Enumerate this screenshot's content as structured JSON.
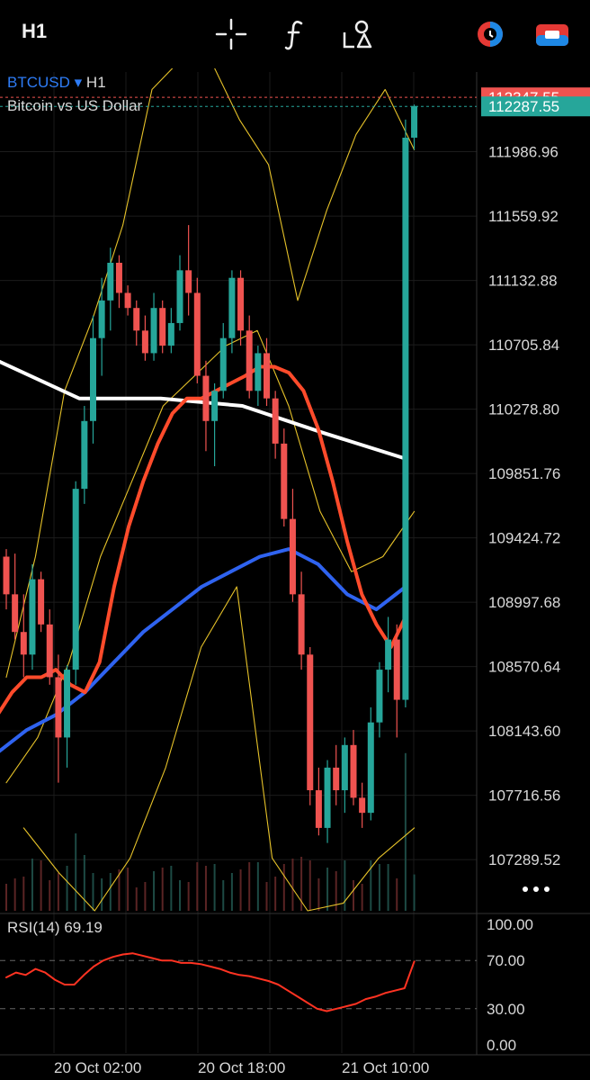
{
  "toolbar": {
    "timeframe": "H1",
    "icons": [
      "crosshair-icon",
      "indicators-icon",
      "drawing-tools-icon",
      "compare-icon",
      "broker-icon"
    ]
  },
  "symbol": {
    "ticker": "BTCUSD",
    "arrow": "▾",
    "timeframe": "H1",
    "description": "Bitcoin vs US Dollar"
  },
  "rsi": {
    "label": "RSI(14)",
    "value": "69.19"
  },
  "colors": {
    "up": "#26a69a",
    "down": "#ef5350",
    "ema_fast": "#ff4b2b",
    "ema_mid": "#2f63f0",
    "ema_slow": "#ffffff",
    "bands": "#e6c229",
    "rsi": "#ff3322"
  },
  "chart_data": [
    {
      "type": "candlestick",
      "price_axis_ticks": [
        "111986.96",
        "111559.92",
        "111132.88",
        "110705.84",
        "110278.80",
        "109851.76",
        "109424.72",
        "108997.68",
        "108570.64",
        "108143.60",
        "107716.56",
        "107289.52"
      ],
      "price_labels": {
        "last_bid": "112347.55",
        "last_price": "112287.55"
      },
      "x_ticks": [
        "20 Oct 02:00",
        "20 Oct 18:00",
        "21 Oct 10:00"
      ],
      "ylim": [
        106950,
        112480
      ],
      "candles": [
        [
          109300,
          109350,
          108950,
          109050
        ],
        [
          109050,
          109320,
          108750,
          108800
        ],
        [
          108800,
          109050,
          108500,
          108650
        ],
        [
          108650,
          109250,
          108550,
          109150
        ],
        [
          109150,
          109200,
          108800,
          108850
        ],
        [
          108850,
          108950,
          108450,
          108500
        ],
        [
          108500,
          108650,
          107800,
          108100
        ],
        [
          108100,
          108580,
          107900,
          108550
        ],
        [
          108550,
          109800,
          108450,
          109750
        ],
        [
          109750,
          110300,
          109650,
          110200
        ],
        [
          110200,
          110900,
          110050,
          110750
        ],
        [
          110750,
          111150,
          110500,
          111000
        ],
        [
          111000,
          111350,
          110800,
          111250
        ],
        [
          111250,
          111300,
          110950,
          111050
        ],
        [
          111050,
          111100,
          110900,
          110950
        ],
        [
          110950,
          111000,
          110700,
          110800
        ],
        [
          110800,
          110900,
          110600,
          110650
        ],
        [
          110650,
          111050,
          110600,
          110950
        ],
        [
          110950,
          111000,
          110650,
          110700
        ],
        [
          110700,
          110950,
          110650,
          110850
        ],
        [
          110850,
          111300,
          110800,
          111200
        ],
        [
          111200,
          111500,
          110900,
          111050
        ],
        [
          111050,
          111150,
          110450,
          110500
        ],
        [
          110500,
          110600,
          110000,
          110200
        ],
        [
          110200,
          110450,
          109900,
          110400
        ],
        [
          110400,
          110850,
          110350,
          110750
        ],
        [
          110750,
          111200,
          110650,
          111150
        ],
        [
          111150,
          111200,
          110700,
          110800
        ],
        [
          110800,
          110900,
          110350,
          110400
        ],
        [
          110400,
          110700,
          110300,
          110650
        ],
        [
          110650,
          110750,
          110300,
          110350
        ],
        [
          110350,
          110400,
          109950,
          110050
        ],
        [
          110050,
          110150,
          109500,
          109550
        ],
        [
          109550,
          109750,
          109000,
          109050
        ],
        [
          109050,
          109200,
          108550,
          108650
        ],
        [
          108650,
          108700,
          107650,
          107750
        ],
        [
          107750,
          107900,
          107450,
          107500
        ],
        [
          107500,
          107950,
          107400,
          107900
        ],
        [
          107900,
          108050,
          107650,
          107750
        ],
        [
          107750,
          108100,
          107600,
          108050
        ],
        [
          108050,
          108150,
          107650,
          107700
        ],
        [
          107700,
          107800,
          107500,
          107600
        ],
        [
          107600,
          108300,
          107550,
          108200
        ],
        [
          108200,
          108600,
          108100,
          108550
        ],
        [
          108550,
          108900,
          108400,
          108750
        ],
        [
          108750,
          108850,
          108100,
          108350
        ],
        [
          108350,
          112200,
          108300,
          112080
        ],
        [
          112080,
          112300,
          112000,
          112290
        ]
      ],
      "ema_fast": [
        108250,
        108400,
        108500,
        108500,
        108550,
        108450,
        108400,
        108600,
        109100,
        109500,
        109800,
        110050,
        110250,
        110350,
        110350,
        110400,
        110450,
        110500,
        110560,
        110560,
        110520,
        110400,
        110150,
        109800,
        109400,
        109050,
        108850,
        108700,
        108900
      ],
      "ema_mid": [
        108000,
        108150,
        108250,
        108400,
        108600,
        108800,
        108950,
        109100,
        109200,
        109300,
        109350,
        109250,
        109050,
        108950,
        109100
      ],
      "ema_slow": [
        110600,
        110350,
        110350,
        110300,
        110120,
        109950
      ],
      "bollinger_upper": [
        108500,
        109300,
        110400,
        110900,
        111500,
        112400,
        112600,
        112600,
        112200,
        111900,
        111000,
        111600,
        112100,
        112400,
        112000
      ],
      "bollinger_lower": [
        107500,
        107200,
        106950,
        107300,
        107900,
        108700,
        109100,
        107300,
        106950,
        107000,
        107300,
        107500
      ],
      "bollinger_mid": [
        107800,
        108100,
        108600,
        109300,
        109800,
        110300,
        110500,
        110700,
        110800,
        110300,
        109600,
        109200,
        109300,
        109600
      ]
    },
    {
      "type": "line",
      "title": "RSI(14)",
      "ylim": [
        0,
        100
      ],
      "y_ticks": [
        "100.00",
        "70.00",
        "30.00",
        "0.00"
      ],
      "values": [
        56,
        60,
        58,
        63,
        60,
        54,
        50,
        50,
        58,
        65,
        70,
        73,
        75,
        76,
        74,
        72,
        70,
        70,
        68,
        68,
        67,
        65,
        63,
        60,
        58,
        57,
        55,
        53,
        50,
        45,
        40,
        35,
        30,
        28,
        30,
        32,
        34,
        38,
        40,
        43,
        45,
        47,
        69.19
      ]
    }
  ]
}
